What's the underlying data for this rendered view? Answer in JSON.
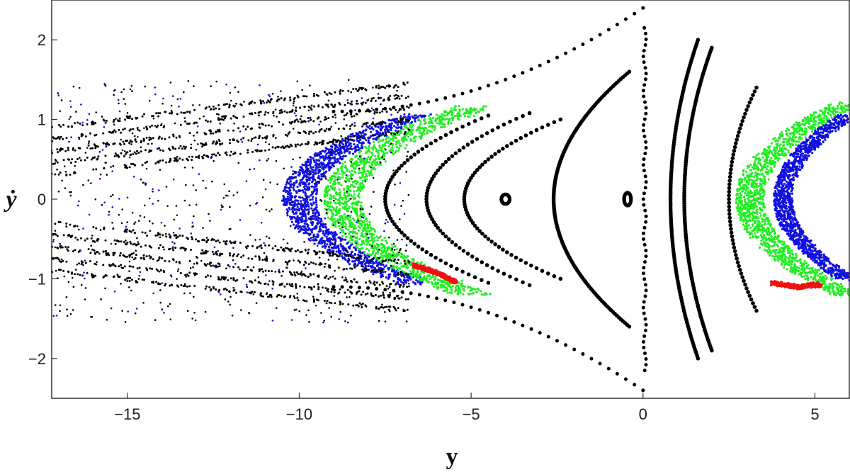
{
  "chart_data": {
    "type": "scatter",
    "title": "",
    "xlabel": "y",
    "ylabel": "ẏ",
    "xlim": [
      -17.2,
      6
    ],
    "ylim": [
      -2.5,
      2.5
    ],
    "grid": false,
    "legend": "none",
    "x_ticks": [
      -15,
      -10,
      -5,
      0,
      5
    ],
    "x_tick_labels": [
      "−15",
      "−10",
      "−5",
      "0",
      "5"
    ],
    "y_ticks": [
      -2,
      -1,
      0,
      1,
      2
    ],
    "y_tick_labels": [
      "−2",
      "−1",
      "0",
      "1",
      "2"
    ],
    "colors": {
      "black": "#000000",
      "blue": "#1010e0",
      "green": "#22ee22",
      "red": "#ee1111",
      "frame": "#333333"
    },
    "series": [
      {
        "color": "black",
        "kind": "invariant_curves",
        "curves": [
          {
            "type": "ellipse",
            "cx": -0.45,
            "cy": 0,
            "rx": 0.1,
            "ry": 0.08
          },
          {
            "type": "ellipse",
            "cx": -4.0,
            "cy": 0,
            "rx": 0.12,
            "ry": 0.06
          },
          {
            "type": "arc",
            "vertex_x": -5.2,
            "tips_x": -2.4,
            "amplitude": 1.0
          },
          {
            "type": "arc",
            "vertex_x": -6.3,
            "tips_x": -3.3,
            "amplitude": 1.08
          },
          {
            "type": "arc",
            "vertex_x": -7.5,
            "tips_x": -4.5,
            "amplitude": 1.05
          },
          {
            "type": "arc",
            "vertex_x": -2.6,
            "tips_x": -0.4,
            "amplitude": 1.6
          },
          {
            "type": "vline",
            "x": 0.05,
            "y_range": [
              -2.15,
              2.15
            ]
          },
          {
            "type": "arc",
            "vertex_x": 0.8,
            "tips_x": 1.6,
            "amplitude": 2.0,
            "opens": "right"
          },
          {
            "type": "arc",
            "vertex_x": 1.2,
            "tips_x": 2.0,
            "amplitude": 1.9,
            "opens": "right"
          },
          {
            "type": "arc",
            "vertex_x": 2.5,
            "tips_x": 3.3,
            "amplitude": 1.4,
            "opens": "right"
          },
          {
            "type": "separatrix",
            "x_range": [
              -9.0,
              0.0
            ],
            "amplitude": 2.4
          }
        ]
      },
      {
        "color": "blue",
        "kind": "chaotic_band",
        "x_range": [
          -10.5,
          -6.5
        ],
        "y_range": [
          -1.05,
          1.05
        ]
      },
      {
        "color": "green",
        "kind": "chaotic_band",
        "x_range": [
          -9.3,
          -4.8
        ],
        "y_range": [
          -1.2,
          1.15
        ]
      },
      {
        "color": "green",
        "kind": "chaotic_band",
        "x_range": [
          2.7,
          6.0
        ],
        "y_range": [
          -1.2,
          1.2
        ]
      },
      {
        "color": "blue",
        "kind": "chaotic_band",
        "x_range": [
          3.8,
          6.0
        ],
        "y_range": [
          -1.0,
          1.05
        ]
      },
      {
        "color": "red",
        "kind": "island",
        "points": [
          [
            -6.7,
            -0.83
          ],
          [
            -6.0,
            -0.92
          ],
          [
            -5.4,
            -1.05
          ]
        ]
      },
      {
        "color": "red",
        "kind": "island",
        "points": [
          [
            3.7,
            -1.05
          ],
          [
            4.5,
            -1.1
          ],
          [
            5.2,
            -1.07
          ]
        ]
      },
      {
        "color": "black",
        "kind": "scattered_orbits",
        "x_range": [
          -17.2,
          -6.8
        ],
        "y_range": [
          -1.55,
          1.5
        ]
      }
    ]
  }
}
